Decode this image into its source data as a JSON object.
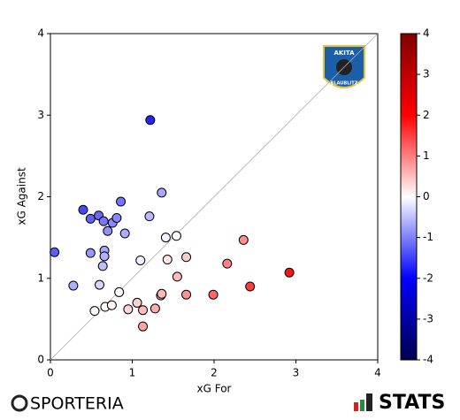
{
  "chart_data": {
    "type": "scatter",
    "x_label": "xG For",
    "y_label": "xG Against",
    "xlim": [
      0,
      4
    ],
    "ylim": [
      0,
      4
    ],
    "xticks": [
      0,
      1,
      2,
      3,
      4
    ],
    "yticks": [
      0,
      1,
      2,
      3,
      4
    ],
    "diagonal": true,
    "colormap": "seismic",
    "clim": [
      -4,
      4
    ],
    "colorbar_ticks": [
      -4,
      -3,
      -2,
      -1,
      0,
      1,
      2,
      3,
      4
    ],
    "series": [
      {
        "x": [
          0.05,
          0.28,
          0.4,
          0.49,
          0.49,
          0.54,
          0.59,
          0.6,
          0.64,
          0.65,
          0.66,
          0.66,
          0.67,
          0.7,
          0.75,
          0.76,
          0.81,
          0.84,
          0.86,
          0.91,
          0.95,
          1.06,
          1.1,
          1.13,
          1.13,
          1.21,
          1.22,
          1.28,
          1.35,
          1.36,
          1.36,
          1.41,
          1.43,
          1.54,
          1.55,
          1.66,
          1.66,
          1.99,
          2.16,
          2.36,
          2.44,
          2.92
        ],
        "values": [
          1.32,
          0.91,
          1.84,
          1.73,
          1.31,
          0.6,
          1.77,
          0.92,
          1.15,
          1.7,
          1.34,
          1.27,
          0.65,
          1.58,
          0.67,
          1.68,
          1.74,
          0.83,
          1.94,
          1.55,
          0.62,
          0.7,
          1.22,
          0.61,
          0.41,
          1.76,
          2.94,
          0.63,
          0.79,
          2.05,
          0.81,
          1.5,
          1.23,
          1.52,
          1.02,
          1.26,
          0.8,
          0.8,
          1.18,
          1.47,
          0.9,
          1.07
        ]
      }
    ]
  },
  "logo": {
    "top": "AKITA",
    "bottom": "BLAUBLITZ"
  },
  "footer": {
    "left": "SPORTERIA",
    "right": "STATS"
  }
}
